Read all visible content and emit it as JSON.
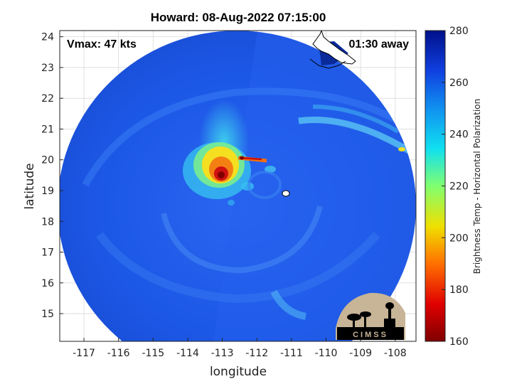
{
  "title": "Howard: 08-Aug-2022 07:15:00",
  "vmax_label": "Vmax: 47 kts",
  "time_away_label": "01:30 away",
  "x_axis": {
    "label": "longitude",
    "range": [
      -117.7,
      -107.4
    ],
    "ticks": [
      -117,
      -116,
      -115,
      -114,
      -113,
      -112,
      -111,
      -110,
      -109,
      -108
    ]
  },
  "y_axis": {
    "label": "latitude",
    "range": [
      14.1,
      24.2
    ],
    "ticks": [
      15,
      16,
      17,
      18,
      19,
      20,
      21,
      22,
      23,
      24
    ]
  },
  "colorbar": {
    "label": "Brightness Temp - Horizontal Polarization",
    "range": [
      160,
      280
    ],
    "ticks": [
      160,
      180,
      200,
      220,
      240,
      260,
      280
    ]
  },
  "logo": {
    "text": "CIMSS"
  },
  "grid": true,
  "colors": {
    "background_scan": "#1f5ce8",
    "warm_core": "#e83010",
    "coast": "#ffffff"
  }
}
